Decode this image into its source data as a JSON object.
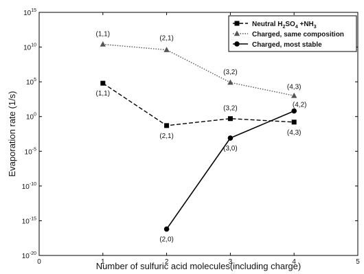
{
  "chart_data": {
    "type": "line",
    "xlabel": "Number of sulfuric acid molecules(including charge)",
    "ylabel": "Evaporation rate (1/s)",
    "xlim": [
      0,
      5
    ],
    "ylim_log10": [
      -20,
      15
    ],
    "y_scale": "log",
    "x_ticks": [
      "0",
      "1",
      "2",
      "3",
      "4",
      "5"
    ],
    "y_ticks": [
      {
        "exp": 15,
        "base": "10",
        "sup": "15"
      },
      {
        "exp": 10,
        "base": "10",
        "sup": "10"
      },
      {
        "exp": 5,
        "base": "10",
        "sup": "5"
      },
      {
        "exp": 0,
        "base": "10",
        "sup": "0"
      },
      {
        "exp": -5,
        "base": "10",
        "sup": "-5"
      },
      {
        "exp": -10,
        "base": "10",
        "sup": "-10"
      },
      {
        "exp": -15,
        "base": "10",
        "sup": "-15"
      },
      {
        "exp": -20,
        "base": "10",
        "sup": "-20"
      }
    ],
    "legend_position": "top-right",
    "series": [
      {
        "name": "Neutral H2SO4 +NH3",
        "legend_parts": [
          "Neutral H",
          "2",
          "SO",
          "4",
          " +NH",
          "3"
        ],
        "marker": "square",
        "line": "dashed",
        "color": "#000000",
        "points": [
          {
            "x": 1,
            "y_exp": 4.8,
            "label": "(1,1)"
          },
          {
            "x": 2,
            "y_exp": -1.3,
            "label": "(2,1)"
          },
          {
            "x": 3,
            "y_exp": -0.3,
            "label": "(3,2)"
          },
          {
            "x": 4,
            "y_exp": -0.8,
            "label": "(4,3)"
          }
        ]
      },
      {
        "name": "Charged, same composition",
        "marker": "triangle",
        "line": "dotted",
        "color": "#555555",
        "points": [
          {
            "x": 1,
            "y_exp": 10.4,
            "label": "(1,1)"
          },
          {
            "x": 2,
            "y_exp": 9.6,
            "label": "(2,1)"
          },
          {
            "x": 3,
            "y_exp": 4.9,
            "label": "(3,2)"
          },
          {
            "x": 4,
            "y_exp": 3.0,
            "label": "(4,3)"
          }
        ]
      },
      {
        "name": "Charged, most stable",
        "marker": "circle",
        "line": "solid",
        "color": "#000000",
        "points": [
          {
            "x": 2,
            "y_exp": -16.2,
            "label": "(2,0)"
          },
          {
            "x": 3,
            "y_exp": -3.1,
            "label": "(3,0)"
          },
          {
            "x": 4,
            "y_exp": 0.8,
            "label": "(4,2)"
          }
        ]
      }
    ]
  }
}
